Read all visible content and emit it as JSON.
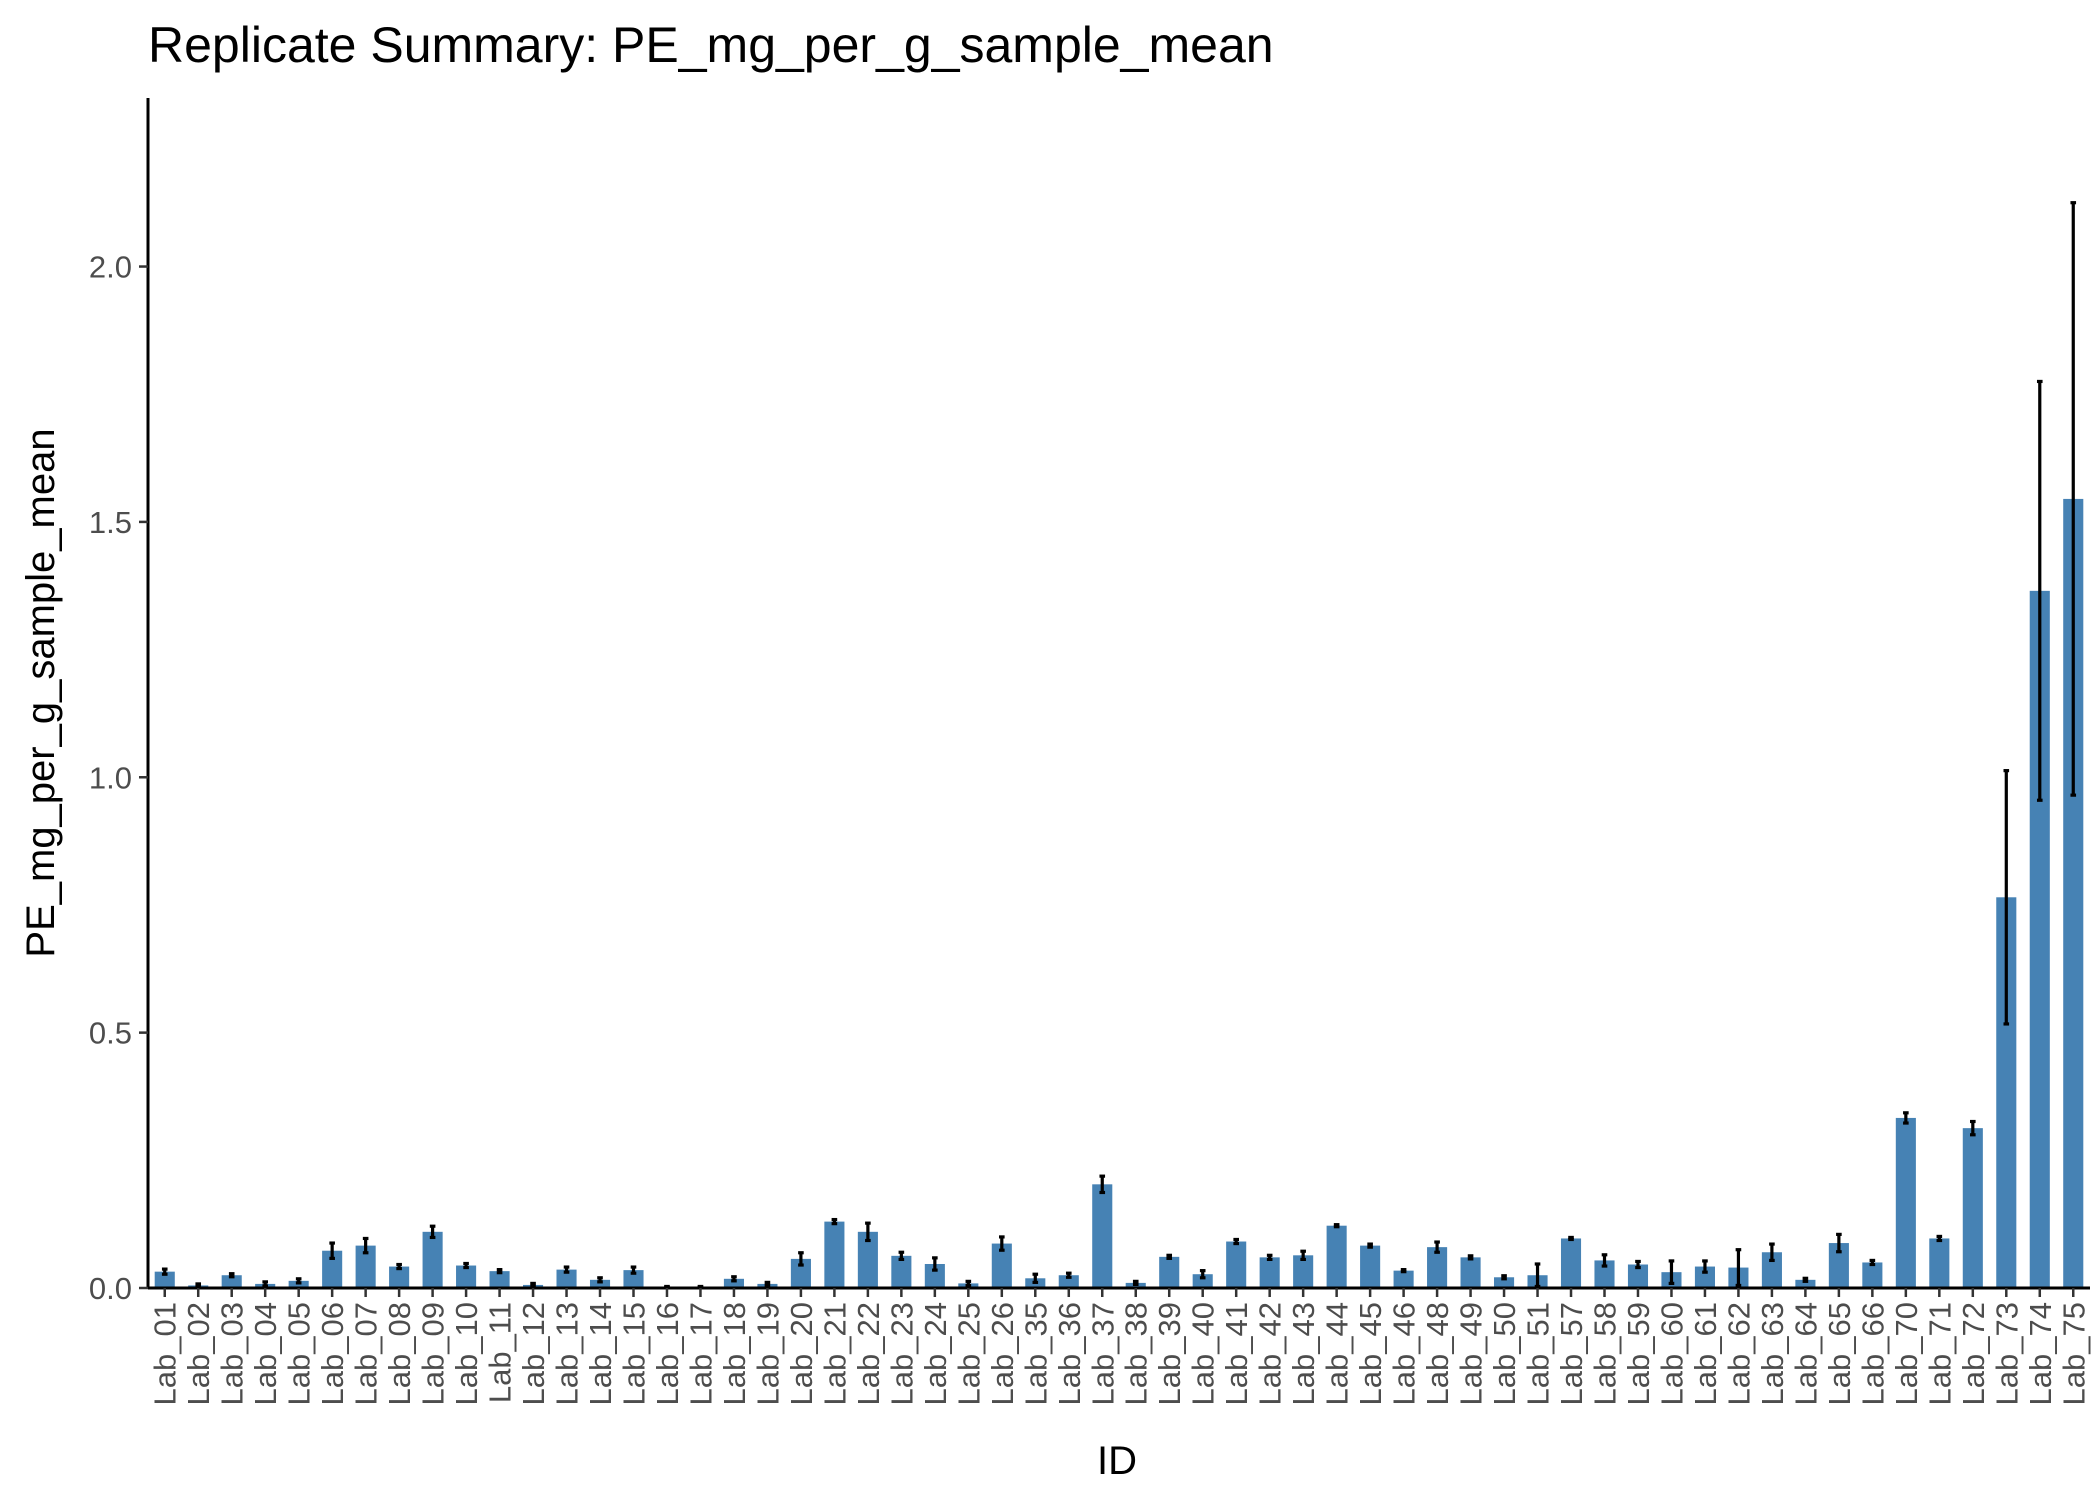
{
  "chart_data": {
    "type": "bar",
    "title": "Replicate Summary: PE_mg_per_g_sample_mean",
    "xlabel": "ID",
    "ylabel": "PE_mg_per_g_sample_mean",
    "ylim": [
      0,
      2.33
    ],
    "yticks": [
      "0.0",
      "0.5",
      "1.0",
      "1.5",
      "2.0"
    ],
    "grid": false,
    "bar_color": "#4682B4",
    "error_bar_color": "#000000",
    "categories": [
      "Lab_01",
      "Lab_02",
      "Lab_03",
      "Lab_04",
      "Lab_05",
      "Lab_06",
      "Lab_07",
      "Lab_08",
      "Lab_09",
      "Lab_10",
      "Lab_11",
      "Lab_12",
      "Lab_13",
      "Lab_14",
      "Lab_15",
      "Lab_16",
      "Lab_17",
      "Lab_18",
      "Lab_19",
      "Lab_20",
      "Lab_21",
      "Lab_22",
      "Lab_23",
      "Lab_24",
      "Lab_25",
      "Lab_26",
      "Lab_35",
      "Lab_36",
      "Lab_37",
      "Lab_38",
      "Lab_39",
      "Lab_40",
      "Lab_41",
      "Lab_42",
      "Lab_43",
      "Lab_44",
      "Lab_45",
      "Lab_46",
      "Lab_48",
      "Lab_49",
      "Lab_50",
      "Lab_51",
      "Lab_57",
      "Lab_58",
      "Lab_59",
      "Lab_60",
      "Lab_61",
      "Lab_62",
      "Lab_63",
      "Lab_64",
      "Lab_65",
      "Lab_66",
      "Lab_70",
      "Lab_71",
      "Lab_72",
      "Lab_73",
      "Lab_74",
      "Lab_75"
    ],
    "values": [
      0.032,
      0.005,
      0.025,
      0.008,
      0.014,
      0.073,
      0.083,
      0.042,
      0.11,
      0.044,
      0.033,
      0.006,
      0.036,
      0.016,
      0.035,
      0.002,
      0.002,
      0.018,
      0.008,
      0.057,
      0.13,
      0.11,
      0.063,
      0.047,
      0.009,
      0.087,
      0.019,
      0.025,
      0.203,
      0.01,
      0.061,
      0.027,
      0.091,
      0.06,
      0.064,
      0.122,
      0.083,
      0.034,
      0.08,
      0.06,
      0.021,
      0.025,
      0.097,
      0.054,
      0.046,
      0.031,
      0.042,
      0.04,
      0.07,
      0.016,
      0.088,
      0.05,
      0.333,
      0.097,
      0.313,
      0.765,
      1.365,
      1.545
    ],
    "errors": [
      0.005,
      0.003,
      0.003,
      0.004,
      0.004,
      0.015,
      0.014,
      0.004,
      0.011,
      0.004,
      0.003,
      0.003,
      0.005,
      0.004,
      0.006,
      0.001,
      0.001,
      0.004,
      0.003,
      0.012,
      0.004,
      0.017,
      0.007,
      0.012,
      0.004,
      0.013,
      0.008,
      0.004,
      0.016,
      0.003,
      0.003,
      0.007,
      0.004,
      0.004,
      0.008,
      0.002,
      0.003,
      0.002,
      0.01,
      0.003,
      0.003,
      0.022,
      0.002,
      0.011,
      0.006,
      0.022,
      0.011,
      0.035,
      0.016,
      0.003,
      0.017,
      0.004,
      0.01,
      0.004,
      0.013,
      0.248,
      0.41,
      0.58
    ]
  }
}
